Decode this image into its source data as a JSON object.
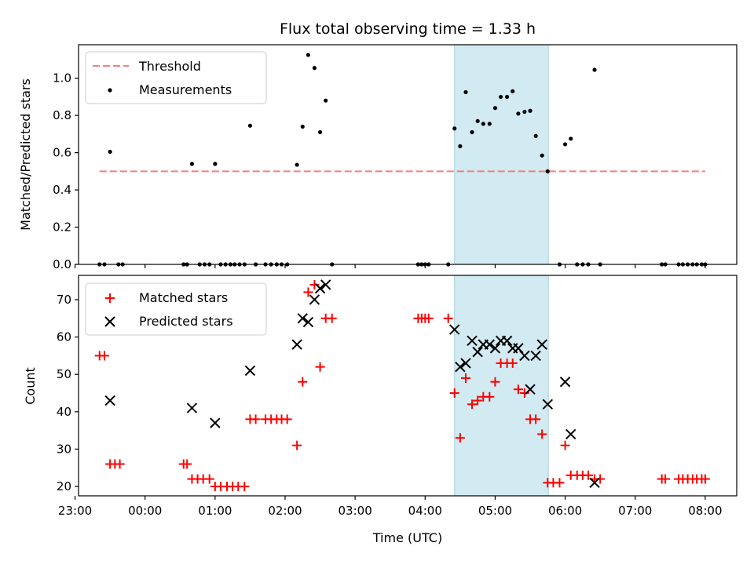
{
  "chart_data": {
    "type": "scatter",
    "title": "Flux total observing time = 1.33 h",
    "xlabel": "Time (UTC)",
    "x_range_hours": [
      -0.95,
      8.45
    ],
    "x_tick_labels": [
      "23:00",
      "00:00",
      "01:00",
      "02:00",
      "03:00",
      "04:00",
      "05:00",
      "06:00",
      "07:00",
      "08:00"
    ],
    "x_tick_hours": [
      -1,
      0,
      1,
      2,
      3,
      4,
      5,
      6,
      7,
      8
    ],
    "shaded_window_hours": [
      4.42,
      5.76
    ],
    "shade_color": "#d2eaf1",
    "panels": [
      {
        "ylabel": "Matched/Predicted stars",
        "ylim": [
          0,
          1.18
        ],
        "y_ticks": [
          "0.0",
          "0.2",
          "0.4",
          "0.6",
          "0.8",
          "1.0"
        ],
        "threshold": {
          "name": "Threshold",
          "value": 0.5,
          "x_range": [
            -0.65,
            8.0
          ],
          "color": "#f08080"
        },
        "series": [
          {
            "name": "Measurements",
            "color": "#000000",
            "marker": "dot",
            "points": [
              [
                -0.65,
                0.0
              ],
              [
                -0.58,
                0.0
              ],
              [
                -0.5,
                0.605
              ],
              [
                -0.38,
                0.0
              ],
              [
                -0.32,
                0.0
              ],
              [
                0.55,
                0.0
              ],
              [
                0.6,
                0.0
              ],
              [
                0.67,
                0.54
              ],
              [
                0.78,
                0.0
              ],
              [
                0.85,
                0.0
              ],
              [
                0.92,
                0.0
              ],
              [
                1.0,
                0.54
              ],
              [
                1.08,
                0.0
              ],
              [
                1.15,
                0.0
              ],
              [
                1.22,
                0.0
              ],
              [
                1.28,
                0.0
              ],
              [
                1.35,
                0.0
              ],
              [
                1.42,
                0.0
              ],
              [
                1.5,
                0.745
              ],
              [
                1.58,
                0.0
              ],
              [
                1.72,
                0.0
              ],
              [
                1.8,
                0.0
              ],
              [
                1.88,
                0.0
              ],
              [
                1.95,
                0.0
              ],
              [
                2.03,
                0.0
              ],
              [
                2.17,
                0.535
              ],
              [
                2.25,
                0.74
              ],
              [
                2.33,
                1.125
              ],
              [
                2.42,
                1.055
              ],
              [
                2.5,
                0.71
              ],
              [
                2.58,
                0.88
              ],
              [
                2.67,
                0.0
              ],
              [
                3.9,
                0.0
              ],
              [
                3.95,
                0.0
              ],
              [
                4.0,
                0.0
              ],
              [
                4.05,
                0.0
              ],
              [
                4.33,
                0.0
              ],
              [
                4.42,
                0.73
              ],
              [
                4.5,
                0.635
              ],
              [
                4.58,
                0.925
              ],
              [
                4.67,
                0.71
              ],
              [
                4.75,
                0.77
              ],
              [
                4.83,
                0.755
              ],
              [
                4.92,
                0.755
              ],
              [
                5.0,
                0.84
              ],
              [
                5.08,
                0.9
              ],
              [
                5.17,
                0.9
              ],
              [
                5.25,
                0.93
              ],
              [
                5.33,
                0.81
              ],
              [
                5.42,
                0.82
              ],
              [
                5.5,
                0.825
              ],
              [
                5.58,
                0.69
              ],
              [
                5.67,
                0.585
              ],
              [
                5.75,
                0.5
              ],
              [
                5.92,
                0.0
              ],
              [
                6.0,
                0.645
              ],
              [
                6.08,
                0.675
              ],
              [
                6.17,
                0.0
              ],
              [
                6.25,
                0.0
              ],
              [
                6.33,
                0.0
              ],
              [
                6.42,
                1.045
              ],
              [
                6.5,
                0.0
              ],
              [
                7.38,
                0.0
              ],
              [
                7.43,
                0.0
              ],
              [
                7.62,
                0.0
              ],
              [
                7.68,
                0.0
              ],
              [
                7.75,
                0.0
              ],
              [
                7.82,
                0.0
              ],
              [
                7.88,
                0.0
              ],
              [
                7.95,
                0.0
              ],
              [
                8.0,
                0.0
              ]
            ]
          }
        ]
      },
      {
        "ylabel": "Count",
        "ylim": [
          17.5,
          76.5
        ],
        "y_ticks": [
          "20",
          "30",
          "40",
          "50",
          "60",
          "70"
        ],
        "series": [
          {
            "name": "Matched stars",
            "color": "#ff0000",
            "marker": "plus",
            "points": [
              [
                -0.65,
                55
              ],
              [
                -0.58,
                55
              ],
              [
                -0.5,
                26
              ],
              [
                -0.43,
                26
              ],
              [
                -0.36,
                26
              ],
              [
                0.55,
                26
              ],
              [
                0.6,
                26
              ],
              [
                0.67,
                22
              ],
              [
                0.75,
                22
              ],
              [
                0.83,
                22
              ],
              [
                0.92,
                22
              ],
              [
                1.0,
                20
              ],
              [
                1.08,
                20
              ],
              [
                1.17,
                20
              ],
              [
                1.25,
                20
              ],
              [
                1.33,
                20
              ],
              [
                1.42,
                20
              ],
              [
                1.5,
                38
              ],
              [
                1.58,
                38
              ],
              [
                1.72,
                38
              ],
              [
                1.8,
                38
              ],
              [
                1.88,
                38
              ],
              [
                1.95,
                38
              ],
              [
                2.03,
                38
              ],
              [
                2.17,
                31
              ],
              [
                2.25,
                48
              ],
              [
                2.33,
                72
              ],
              [
                2.42,
                74
              ],
              [
                2.5,
                52
              ],
              [
                2.58,
                65
              ],
              [
                2.67,
                65
              ],
              [
                3.9,
                65
              ],
              [
                3.95,
                65
              ],
              [
                4.0,
                65
              ],
              [
                4.05,
                65
              ],
              [
                4.33,
                65
              ],
              [
                4.42,
                45
              ],
              [
                4.5,
                33
              ],
              [
                4.58,
                49
              ],
              [
                4.67,
                42
              ],
              [
                4.75,
                43
              ],
              [
                4.83,
                44
              ],
              [
                4.92,
                44
              ],
              [
                5.0,
                48
              ],
              [
                5.08,
                53
              ],
              [
                5.17,
                53
              ],
              [
                5.25,
                53
              ],
              [
                5.33,
                46
              ],
              [
                5.42,
                45
              ],
              [
                5.5,
                38
              ],
              [
                5.58,
                38
              ],
              [
                5.67,
                34
              ],
              [
                5.75,
                21
              ],
              [
                5.83,
                21
              ],
              [
                5.92,
                21
              ],
              [
                6.0,
                31
              ],
              [
                6.08,
                23
              ],
              [
                6.17,
                23
              ],
              [
                6.25,
                23
              ],
              [
                6.33,
                23
              ],
              [
                6.42,
                22
              ],
              [
                6.5,
                22
              ],
              [
                7.38,
                22
              ],
              [
                7.43,
                22
              ],
              [
                7.62,
                22
              ],
              [
                7.68,
                22
              ],
              [
                7.75,
                22
              ],
              [
                7.82,
                22
              ],
              [
                7.88,
                22
              ],
              [
                7.95,
                22
              ],
              [
                8.0,
                22
              ]
            ]
          },
          {
            "name": "Predicted stars",
            "color": "#000000",
            "marker": "x",
            "points": [
              [
                -0.5,
                43
              ],
              [
                0.67,
                41
              ],
              [
                1.0,
                37
              ],
              [
                1.5,
                51
              ],
              [
                2.17,
                58
              ],
              [
                2.25,
                65
              ],
              [
                2.33,
                64
              ],
              [
                2.42,
                70
              ],
              [
                2.5,
                73
              ],
              [
                2.58,
                74
              ],
              [
                4.42,
                62
              ],
              [
                4.5,
                52
              ],
              [
                4.58,
                53
              ],
              [
                4.67,
                59
              ],
              [
                4.75,
                56
              ],
              [
                4.83,
                58
              ],
              [
                4.92,
                58
              ],
              [
                5.0,
                57
              ],
              [
                5.08,
                59
              ],
              [
                5.17,
                59
              ],
              [
                5.25,
                57
              ],
              [
                5.33,
                57
              ],
              [
                5.42,
                55
              ],
              [
                5.5,
                46
              ],
              [
                5.58,
                55
              ],
              [
                5.67,
                58
              ],
              [
                5.75,
                42
              ],
              [
                6.0,
                48
              ],
              [
                6.08,
                34
              ],
              [
                6.42,
                21
              ]
            ]
          }
        ]
      }
    ]
  }
}
